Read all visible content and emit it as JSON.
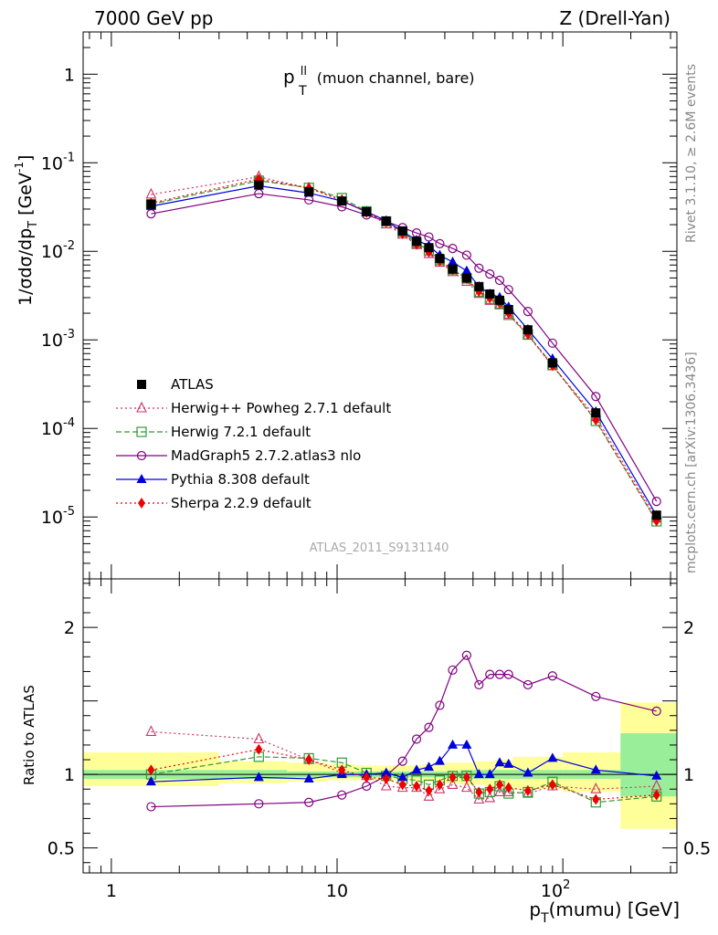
{
  "header": {
    "left": "7000 GeV pp",
    "right": "Z (Drell-Yan)"
  },
  "side_labels": {
    "rivet": "Rivet 3.1.10, ≥ 2.6M events",
    "url": "mcplots.cern.ch [arXiv:1306.3436]"
  },
  "chart_data": {
    "type": "line",
    "title_main": "p",
    "title_sup": "ll",
    "title_sub": "T",
    "title_rest": "(muon channel, bare)",
    "watermark": "ATLAS_2011_S9131140",
    "xlabel": "p",
    "xlabel_sub": "T",
    "xlabel_rest": "(mumu) [GeV]",
    "xlim": [
      0.75,
      320
    ],
    "xscale": "log",
    "xtick_labels": [
      "1",
      "10",
      "10^2"
    ],
    "ylabel_top": "1/σdσ/dp_T [GeV^-1]",
    "ylim_top": [
      2e-06,
      3
    ],
    "yscale_top": "log",
    "ytick_labels_top": [
      "1",
      "10^-1",
      "10^-2",
      "10^-3",
      "10^-4",
      "10^-5"
    ],
    "ylabel_bottom": "Ratio to ATLAS",
    "ylim_bottom": [
      0.33,
      2.33
    ],
    "ytick_labels_bottom": [
      "0.5",
      "1",
      "2"
    ],
    "legend_position": "bottom-left",
    "x": [
      1.5,
      4.5,
      7.5,
      10.5,
      13.5,
      16.5,
      19.5,
      22.5,
      25.5,
      28.5,
      32.5,
      37.5,
      42.5,
      47.5,
      52.5,
      57.5,
      70,
      90,
      140,
      260
    ],
    "bands": {
      "edges": [
        0.75,
        3,
        6,
        9,
        12,
        15,
        18,
        21,
        24,
        27,
        30,
        35,
        40,
        45,
        50,
        55,
        60,
        80,
        100,
        180,
        320
      ],
      "stat_lo": [
        0.97,
        0.97,
        0.98,
        0.98,
        0.98,
        0.98,
        0.98,
        0.98,
        0.98,
        0.98,
        0.98,
        0.97,
        0.97,
        0.97,
        0.97,
        0.97,
        0.97,
        0.97,
        0.97,
        0.85
      ],
      "stat_hi": [
        1.03,
        1.03,
        1.02,
        1.02,
        1.02,
        1.02,
        1.02,
        1.02,
        1.02,
        1.02,
        1.02,
        1.03,
        1.03,
        1.03,
        1.03,
        1.03,
        1.03,
        1.03,
        1.03,
        1.28
      ],
      "tot_lo": [
        0.92,
        0.94,
        0.95,
        0.96,
        0.96,
        0.96,
        0.96,
        0.95,
        0.95,
        0.95,
        0.94,
        0.93,
        0.93,
        0.92,
        0.92,
        0.92,
        0.9,
        0.9,
        0.88,
        0.63
      ],
      "tot_hi": [
        1.15,
        1.09,
        1.08,
        1.07,
        1.06,
        1.06,
        1.06,
        1.06,
        1.07,
        1.07,
        1.08,
        1.08,
        1.09,
        1.09,
        1.1,
        1.1,
        1.12,
        1.12,
        1.15,
        1.49
      ],
      "stat_color": "#99ee99",
      "tot_color": "#ffff99"
    },
    "atlas": {
      "name": "ATLAS",
      "color": "#000000",
      "values": [
        0.034,
        0.056,
        0.047,
        0.037,
        0.028,
        0.022,
        0.017,
        0.013,
        0.011,
        0.0083,
        0.0063,
        0.005,
        0.004,
        0.0033,
        0.0028,
        0.0022,
        0.0013,
        0.00055,
        0.00015,
        1.05e-05
      ]
    },
    "series": [
      {
        "name": "Herwig++ Powheg 2.7.1 default",
        "color": "#cc3366",
        "marker": "triangle-open",
        "dash": "2,3",
        "ratio": [
          1.29,
          1.24,
          1.1,
          1.01,
          0.99,
          0.92,
          0.91,
          0.91,
          0.85,
          0.9,
          0.93,
          0.91,
          0.83,
          0.84,
          0.88,
          0.88,
          0.87,
          0.92,
          0.9,
          0.92
        ]
      },
      {
        "name": "Herwig 7.2.1 default",
        "color": "#339933",
        "marker": "square-open",
        "dash": "6,3",
        "ratio": [
          1.0,
          1.12,
          1.11,
          1.08,
          1.01,
          0.99,
          0.97,
          0.96,
          0.93,
          0.96,
          0.99,
          0.99,
          0.87,
          0.88,
          0.92,
          0.87,
          0.88,
          0.95,
          0.81,
          0.85
        ]
      },
      {
        "name": "MadGraph5 2.7.2.atlas3 nlo",
        "color": "#800080",
        "marker": "circle-open",
        "dash": "",
        "ratio": [
          0.78,
          0.8,
          0.81,
          0.86,
          0.92,
          0.99,
          1.09,
          1.24,
          1.32,
          1.47,
          1.71,
          1.81,
          1.61,
          1.68,
          1.68,
          1.68,
          1.61,
          1.67,
          1.53,
          1.43
        ]
      },
      {
        "name": "Pythia 8.308 default",
        "color": "#0000dd",
        "marker": "triangle-filled",
        "dash": "",
        "ratio": [
          0.95,
          0.98,
          0.97,
          1.0,
          1.0,
          1.01,
          0.98,
          1.03,
          1.05,
          1.09,
          1.2,
          1.2,
          1.0,
          1.0,
          1.08,
          1.07,
          1.01,
          1.11,
          1.03,
          0.99
        ]
      },
      {
        "name": "Sherpa 2.2.9 default",
        "color": "#ee0000",
        "marker": "diamond-filled",
        "dash": "2,3",
        "ratio": [
          1.03,
          1.17,
          1.1,
          1.03,
          0.98,
          0.97,
          0.93,
          0.92,
          0.89,
          0.93,
          0.98,
          0.98,
          0.88,
          0.9,
          0.93,
          0.91,
          0.89,
          0.93,
          0.83,
          0.86
        ]
      }
    ]
  }
}
